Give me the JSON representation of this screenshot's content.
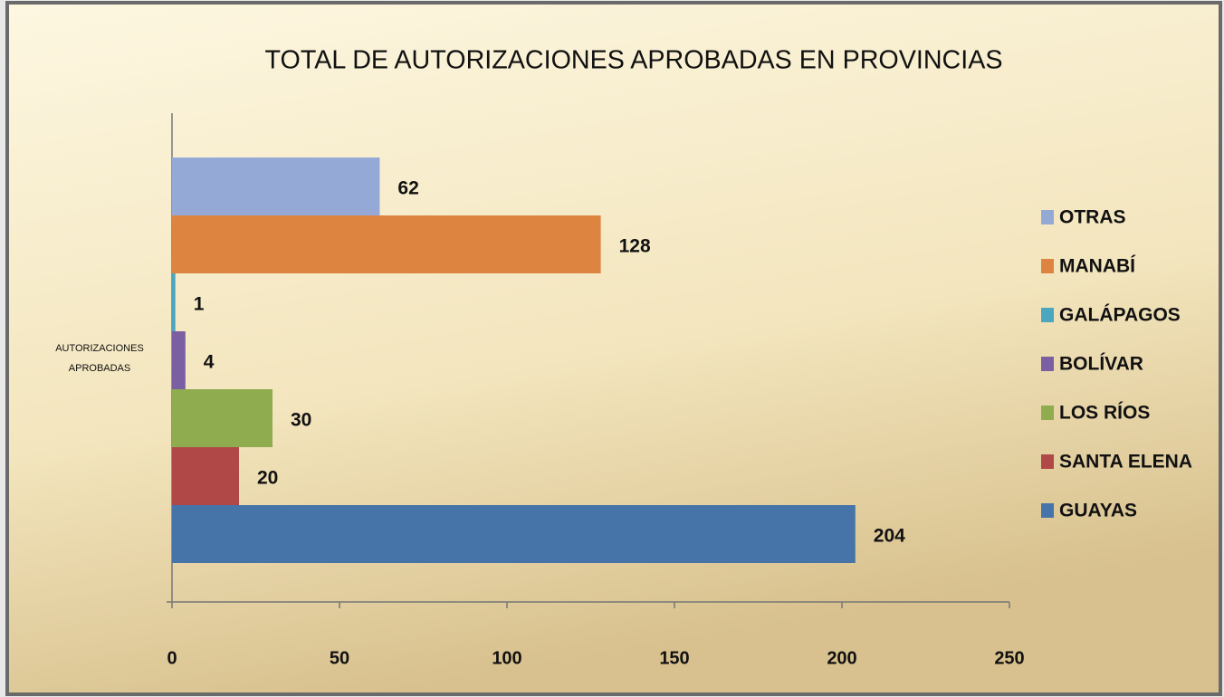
{
  "chart_data": {
    "type": "barh",
    "title": "TOTAL DE AUTORIZACIONES APROBADAS EN PROVINCIAS",
    "categories": [
      "AUTORIZACIONES APROBADAS"
    ],
    "series": [
      {
        "name": "GUAYAS",
        "color": "#4674a8",
        "values": [
          204
        ]
      },
      {
        "name": "SANTA ELENA",
        "color": "#b04848",
        "values": [
          20
        ]
      },
      {
        "name": "LOS RÍOS",
        "color": "#8fac4f",
        "values": [
          30
        ]
      },
      {
        "name": "BOLÍVAR",
        "color": "#7a5fa2",
        "values": [
          4
        ]
      },
      {
        "name": "GALÁPAGOS",
        "color": "#4ba6bf",
        "values": [
          1
        ]
      },
      {
        "name": "MANABÍ",
        "color": "#de8441",
        "values": [
          128
        ]
      },
      {
        "name": "OTRAS",
        "color": "#95a9d6",
        "values": [
          62
        ]
      }
    ],
    "xlim": [
      0,
      250
    ],
    "xticks": [
      0,
      50,
      100,
      150,
      200,
      250
    ],
    "grid": false,
    "legend": "right"
  }
}
